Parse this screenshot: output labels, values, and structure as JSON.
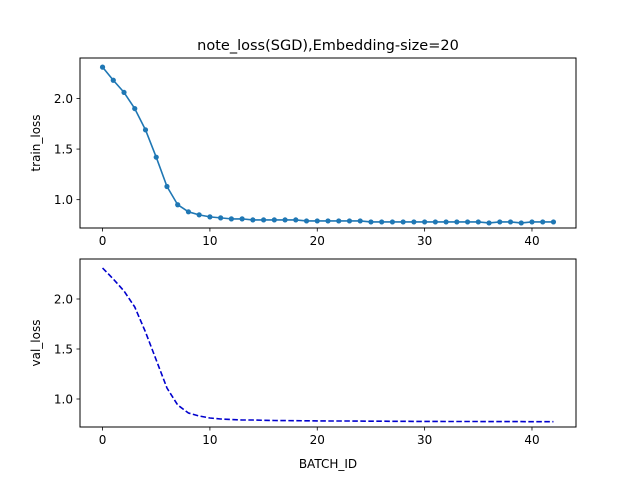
{
  "figure": {
    "title": "note_loss(SGD),Embedding-size=20"
  },
  "chart_data": [
    {
      "type": "line",
      "title": "note_loss(SGD),Embedding-size=20",
      "xlabel": "",
      "ylabel": "train_loss",
      "xlim": [
        -2.1,
        44.1
      ],
      "ylim": [
        0.72,
        2.4
      ],
      "xticks": [
        0,
        10,
        20,
        30,
        40
      ],
      "yticks": [
        1.0,
        1.5,
        2.0
      ],
      "xtick_labels": [
        "0",
        "10",
        "20",
        "30",
        "40"
      ],
      "ytick_labels": [
        "1.0",
        "1.5",
        "2.0"
      ],
      "grid": false,
      "series": [
        {
          "style": "solid line with circle markers",
          "color": "#1f77b4",
          "x": [
            0,
            1,
            2,
            3,
            4,
            5,
            6,
            7,
            8,
            9,
            10,
            11,
            12,
            13,
            14,
            15,
            16,
            17,
            18,
            19,
            20,
            21,
            22,
            23,
            24,
            25,
            26,
            27,
            28,
            29,
            30,
            31,
            32,
            33,
            34,
            35,
            36,
            37,
            38,
            39,
            40,
            41,
            42
          ],
          "values": [
            2.31,
            2.18,
            2.06,
            1.9,
            1.69,
            1.42,
            1.13,
            0.95,
            0.88,
            0.85,
            0.83,
            0.82,
            0.81,
            0.81,
            0.8,
            0.8,
            0.8,
            0.8,
            0.8,
            0.79,
            0.79,
            0.79,
            0.79,
            0.79,
            0.79,
            0.78,
            0.78,
            0.78,
            0.78,
            0.78,
            0.78,
            0.78,
            0.78,
            0.78,
            0.78,
            0.78,
            0.77,
            0.78,
            0.78,
            0.77,
            0.78,
            0.78,
            0.78
          ]
        }
      ]
    },
    {
      "type": "line",
      "title": "",
      "xlabel": "BATCH_ID",
      "ylabel": "val_loss",
      "xlim": [
        -2.1,
        44.1
      ],
      "ylim": [
        0.72,
        2.4
      ],
      "xticks": [
        0,
        10,
        20,
        30,
        40
      ],
      "yticks": [
        1.0,
        1.5,
        2.0
      ],
      "xtick_labels": [
        "0",
        "10",
        "20",
        "30",
        "40"
      ],
      "ytick_labels": [
        "1.0",
        "1.5",
        "2.0"
      ],
      "grid": false,
      "series": [
        {
          "style": "dashed line",
          "color": "#0000cd",
          "x": [
            0,
            1,
            2,
            3,
            4,
            5,
            6,
            7,
            8,
            9,
            10,
            11,
            12,
            13,
            14,
            15,
            16,
            17,
            18,
            19,
            20,
            21,
            22,
            23,
            24,
            25,
            26,
            27,
            28,
            29,
            30,
            31,
            32,
            33,
            34,
            35,
            36,
            37,
            38,
            39,
            40,
            41,
            42
          ],
          "values": [
            2.31,
            2.2,
            2.08,
            1.92,
            1.67,
            1.39,
            1.11,
            0.94,
            0.86,
            0.83,
            0.81,
            0.8,
            0.795,
            0.79,
            0.79,
            0.787,
            0.785,
            0.784,
            0.783,
            0.782,
            0.781,
            0.78,
            0.78,
            0.78,
            0.779,
            0.778,
            0.778,
            0.777,
            0.777,
            0.776,
            0.776,
            0.776,
            0.775,
            0.775,
            0.775,
            0.775,
            0.774,
            0.774,
            0.774,
            0.774,
            0.773,
            0.773,
            0.773
          ]
        }
      ]
    }
  ]
}
